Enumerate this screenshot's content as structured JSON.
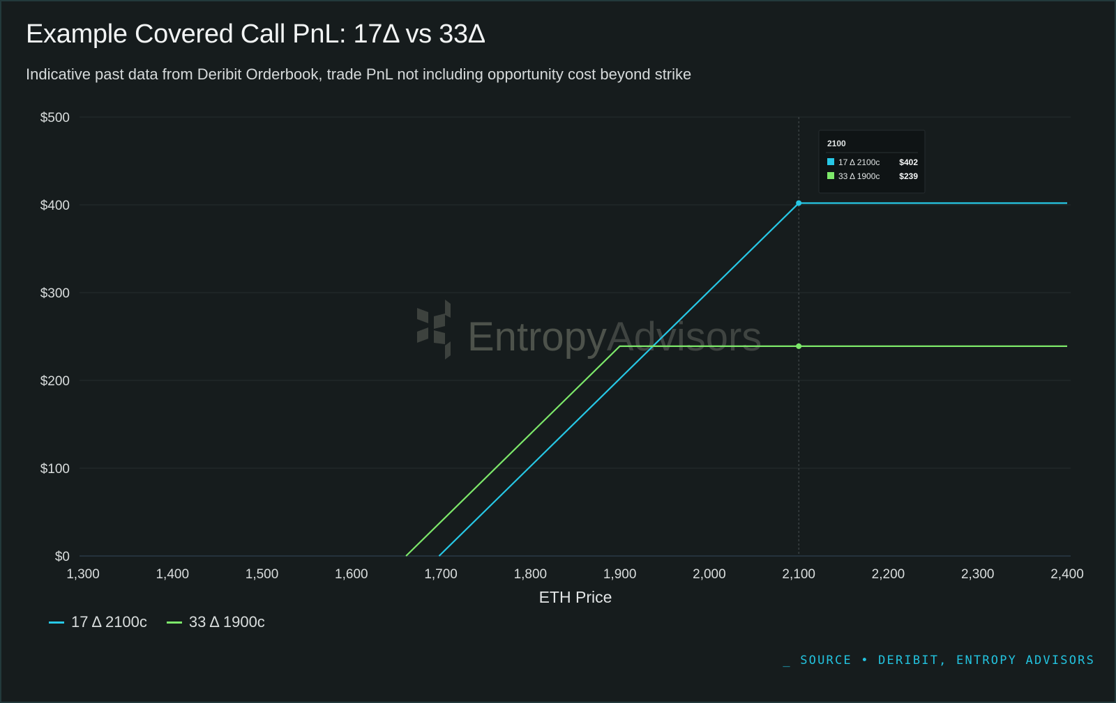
{
  "chart_data": {
    "type": "line",
    "title": "Example Covered Call PnL: 17Δ vs 33Δ",
    "subtitle": "Indicative past data from Deribit Orderbook, trade PnL not including opportunity cost beyond strike",
    "xlabel": "ETH Price",
    "ylabel": "",
    "xlim": [
      1300,
      2400
    ],
    "ylim": [
      0,
      500
    ],
    "x_ticks": [
      1300,
      1400,
      1500,
      1600,
      1700,
      1800,
      1900,
      2000,
      2100,
      2200,
      2300,
      2400
    ],
    "x_tick_labels": [
      "1,300",
      "1,400",
      "1,500",
      "1,600",
      "1,700",
      "1,800",
      "1,900",
      "2,000",
      "2,100",
      "2,200",
      "2,300",
      "2,400"
    ],
    "y_ticks": [
      0,
      100,
      200,
      300,
      400,
      500
    ],
    "y_tick_labels": [
      "$0",
      "$100",
      "$200",
      "$300",
      "$400",
      "$500"
    ],
    "grid": true,
    "legend_position": "bottom-left",
    "series": [
      {
        "name": "17 Δ 2100c",
        "color": "#27c8e6",
        "x": [
          1698,
          2100,
          2400
        ],
        "y": [
          0,
          402,
          402
        ]
      },
      {
        "name": "33 Δ 1900c",
        "color": "#7de86a",
        "x": [
          1661,
          1900,
          2400
        ],
        "y": [
          0,
          239,
          239
        ]
      }
    ],
    "hover": {
      "x": 2100,
      "label": "2100",
      "rows": [
        {
          "name": "17 Δ 2100c",
          "value": "$402",
          "color": "#27c8e6",
          "y": 402
        },
        {
          "name": "33 Δ 1900c",
          "value": "$239",
          "color": "#7de86a",
          "y": 239
        }
      ]
    },
    "watermark": "EntropyAdvisors",
    "watermark_parts": [
      "Entropy",
      "Advisors"
    ]
  },
  "source": "_ SOURCE • DERIBIT, ENTROPY ADVISORS"
}
